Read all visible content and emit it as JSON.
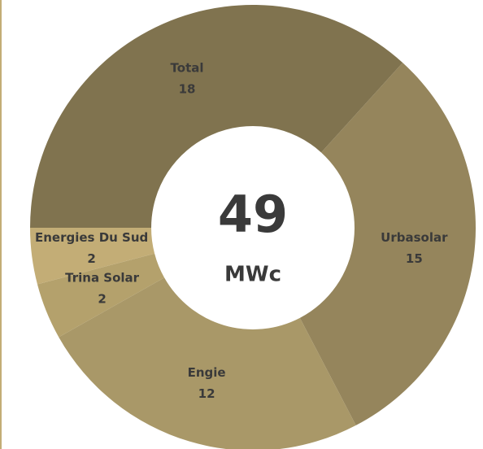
{
  "chart_data": {
    "type": "donut",
    "categories": [
      "Total",
      "Urbasolar",
      "Engie",
      "Trina Solar",
      "Energies Du Sud"
    ],
    "values": [
      18,
      15,
      12,
      2,
      2
    ],
    "colors": [
      "#80734f",
      "#95855c",
      "#a99868",
      "#b4a16c",
      "#c3ad76"
    ],
    "center_value": 49,
    "center_unit": "MWc"
  }
}
